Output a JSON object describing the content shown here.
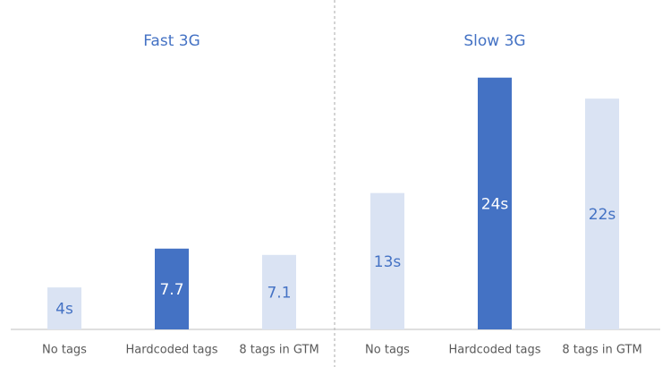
{
  "chart_data": [
    {
      "type": "bar",
      "title": "Fast 3G",
      "categories": [
        "No tags",
        "Hardcoded tags",
        "8 tags in GTM"
      ],
      "values": [
        4,
        7.7,
        7.1
      ],
      "value_labels": [
        "4s",
        "7.7",
        "7.1"
      ],
      "colors": [
        "#dae3f3",
        "#4472c4",
        "#dae3f3"
      ],
      "ylim": [
        0,
        25
      ]
    },
    {
      "type": "bar",
      "title": "Slow 3G",
      "categories": [
        "No tags",
        "Hardcoded tags",
        "8 tags in GTM"
      ],
      "values": [
        13,
        24,
        22
      ],
      "value_labels": [
        "13s",
        "24s",
        "22s"
      ],
      "colors": [
        "#dae3f3",
        "#4472c4",
        "#dae3f3"
      ],
      "ylim": [
        0,
        25
      ]
    }
  ]
}
